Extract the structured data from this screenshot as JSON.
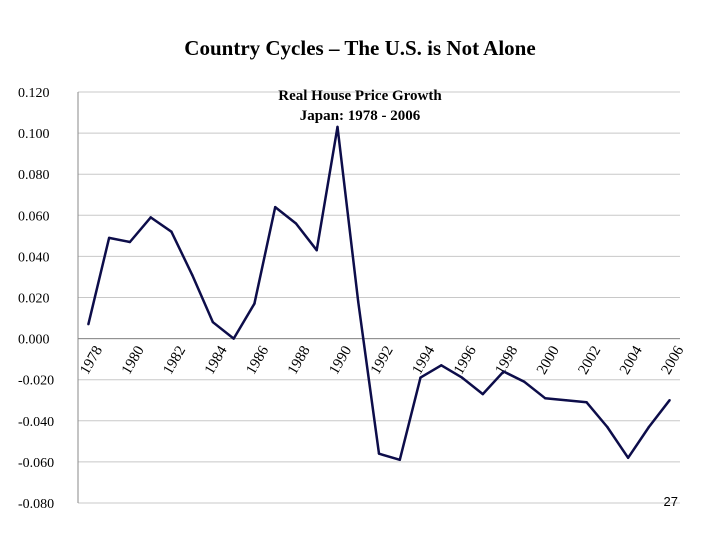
{
  "title": "Country Cycles – The U.S. is Not Alone",
  "page_number": "27",
  "chart_data": {
    "type": "line",
    "title_line1": "Real House Price Growth",
    "title_line2": "Japan:  1978 - 2006",
    "xlabel": "",
    "ylabel": "",
    "ylim": [
      -0.08,
      0.12
    ],
    "yticks": [
      "0.120",
      "0.100",
      "0.080",
      "0.060",
      "0.040",
      "0.020",
      "0.000",
      "-0.020",
      "-0.040",
      "-0.060",
      "-0.080"
    ],
    "xticks": [
      "1978",
      "1980",
      "1982",
      "1984",
      "1986",
      "1988",
      "1990",
      "1992",
      "1994",
      "1996",
      "1998",
      "2000",
      "2002",
      "2004",
      "2006"
    ],
    "grid": true,
    "legend": "none",
    "line_color": "#0d0d4a",
    "x": [
      1978,
      1979,
      1980,
      1981,
      1982,
      1983,
      1984,
      1985,
      1986,
      1987,
      1988,
      1989,
      1990,
      1991,
      1992,
      1993,
      1994,
      1995,
      1996,
      1997,
      1998,
      1999,
      2000,
      2001,
      2002,
      2003,
      2004,
      2005,
      2006
    ],
    "values": [
      0.007,
      0.049,
      0.047,
      0.059,
      0.052,
      0.031,
      0.008,
      0.0,
      0.017,
      0.064,
      0.056,
      0.043,
      0.103,
      0.018,
      -0.056,
      -0.059,
      -0.019,
      -0.013,
      -0.019,
      -0.027,
      -0.016,
      -0.021,
      -0.029,
      -0.03,
      -0.031,
      -0.043,
      -0.058,
      -0.043,
      -0.03
    ]
  }
}
